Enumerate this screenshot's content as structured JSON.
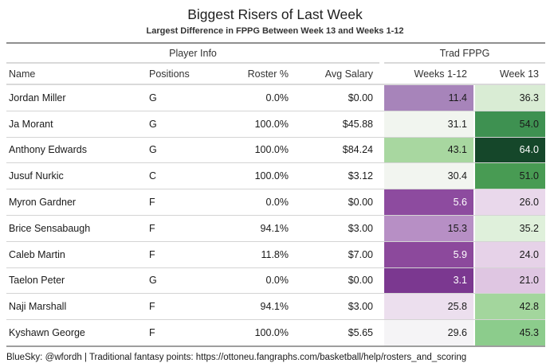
{
  "chart_data": {
    "type": "table",
    "title": "Biggest Risers of Last Week",
    "subtitle": "Largest Difference in FPPG Between Week 13 and Weeks 1-12",
    "column_groups": [
      {
        "label": "Player Info",
        "span": 4
      },
      {
        "label": "Trad FPPG",
        "span": 2
      }
    ],
    "columns": [
      "Name",
      "Positions",
      "Roster %",
      "Avg Salary",
      "Weeks 1-12",
      "Week 13"
    ],
    "heatmap_scale": "diverging purple-white-green applied to Weeks 1-12 and Week 13 FPPG columns",
    "rows": [
      {
        "name": "Jordan Miller",
        "positions": "G",
        "roster_pct": "0.0%",
        "avg_salary": "$0.00",
        "weeks_1_12": "11.4",
        "week_13": "36.3",
        "weeks_1_12_bg": "#a784ba",
        "weeks_1_12_fg": "#1a1a1a",
        "week_13_bg": "#d9ecd4",
        "week_13_fg": "#1a1a1a"
      },
      {
        "name": "Ja Morant",
        "positions": "G",
        "roster_pct": "100.0%",
        "avg_salary": "$45.88",
        "weeks_1_12": "31.1",
        "week_13": "54.0",
        "weeks_1_12_bg": "#f1f5ef",
        "weeks_1_12_fg": "#1a1a1a",
        "week_13_bg": "#3e9151",
        "week_13_fg": "#1a1a1a"
      },
      {
        "name": "Anthony Edwards",
        "positions": "G",
        "roster_pct": "100.0%",
        "avg_salary": "$84.24",
        "weeks_1_12": "43.1",
        "week_13": "64.0",
        "weeks_1_12_bg": "#a8d7a0",
        "weeks_1_12_fg": "#1a1a1a",
        "week_13_bg": "#15472a",
        "week_13_fg": "#ffffff"
      },
      {
        "name": "Jusuf Nurkic",
        "positions": "C",
        "roster_pct": "100.0%",
        "avg_salary": "$3.12",
        "weeks_1_12": "30.4",
        "week_13": "51.0",
        "weeks_1_12_bg": "#f2f5f0",
        "weeks_1_12_fg": "#1a1a1a",
        "week_13_bg": "#489b53",
        "week_13_fg": "#1a1a1a"
      },
      {
        "name": "Myron Gardner",
        "positions": "F",
        "roster_pct": "0.0%",
        "avg_salary": "$0.00",
        "weeks_1_12": "5.6",
        "week_13": "26.0",
        "weeks_1_12_bg": "#8d4b9f",
        "weeks_1_12_fg": "#ffffff",
        "week_13_bg": "#e9d8eb",
        "week_13_fg": "#1a1a1a"
      },
      {
        "name": "Brice Sensabaugh",
        "positions": "F",
        "roster_pct": "94.1%",
        "avg_salary": "$3.00",
        "weeks_1_12": "15.3",
        "week_13": "35.2",
        "weeks_1_12_bg": "#b78fc5",
        "weeks_1_12_fg": "#1a1a1a",
        "week_13_bg": "#dff0db",
        "week_13_fg": "#1a1a1a"
      },
      {
        "name": "Caleb Martin",
        "positions": "F",
        "roster_pct": "11.8%",
        "avg_salary": "$7.00",
        "weeks_1_12": "5.9",
        "week_13": "24.0",
        "weeks_1_12_bg": "#8c499c",
        "weeks_1_12_fg": "#ffffff",
        "week_13_bg": "#e6d2e8",
        "week_13_fg": "#1a1a1a"
      },
      {
        "name": "Taelon Peter",
        "positions": "G",
        "roster_pct": "0.0%",
        "avg_salary": "$0.00",
        "weeks_1_12": "3.1",
        "week_13": "21.0",
        "weeks_1_12_bg": "#7b3890",
        "weeks_1_12_fg": "#ffffff",
        "week_13_bg": "#dfc6e2",
        "week_13_fg": "#1a1a1a"
      },
      {
        "name": "Naji Marshall",
        "positions": "F",
        "roster_pct": "94.1%",
        "avg_salary": "$3.00",
        "weeks_1_12": "25.8",
        "week_13": "42.8",
        "weeks_1_12_bg": "#ecdfee",
        "weeks_1_12_fg": "#1a1a1a",
        "week_13_bg": "#a3d69d",
        "week_13_fg": "#1a1a1a"
      },
      {
        "name": "Kyshawn George",
        "positions": "F",
        "roster_pct": "100.0%",
        "avg_salary": "$5.65",
        "weeks_1_12": "29.6",
        "week_13": "45.3",
        "weeks_1_12_bg": "#f5f4f6",
        "weeks_1_12_fg": "#1a1a1a",
        "week_13_bg": "#8ccc8c",
        "week_13_fg": "#1a1a1a"
      }
    ],
    "footer": "BlueSky: @wfordh | Traditional fantasy points: https://ottoneu.fangraphs.com/basketball/help/rosters_and_scoring"
  }
}
